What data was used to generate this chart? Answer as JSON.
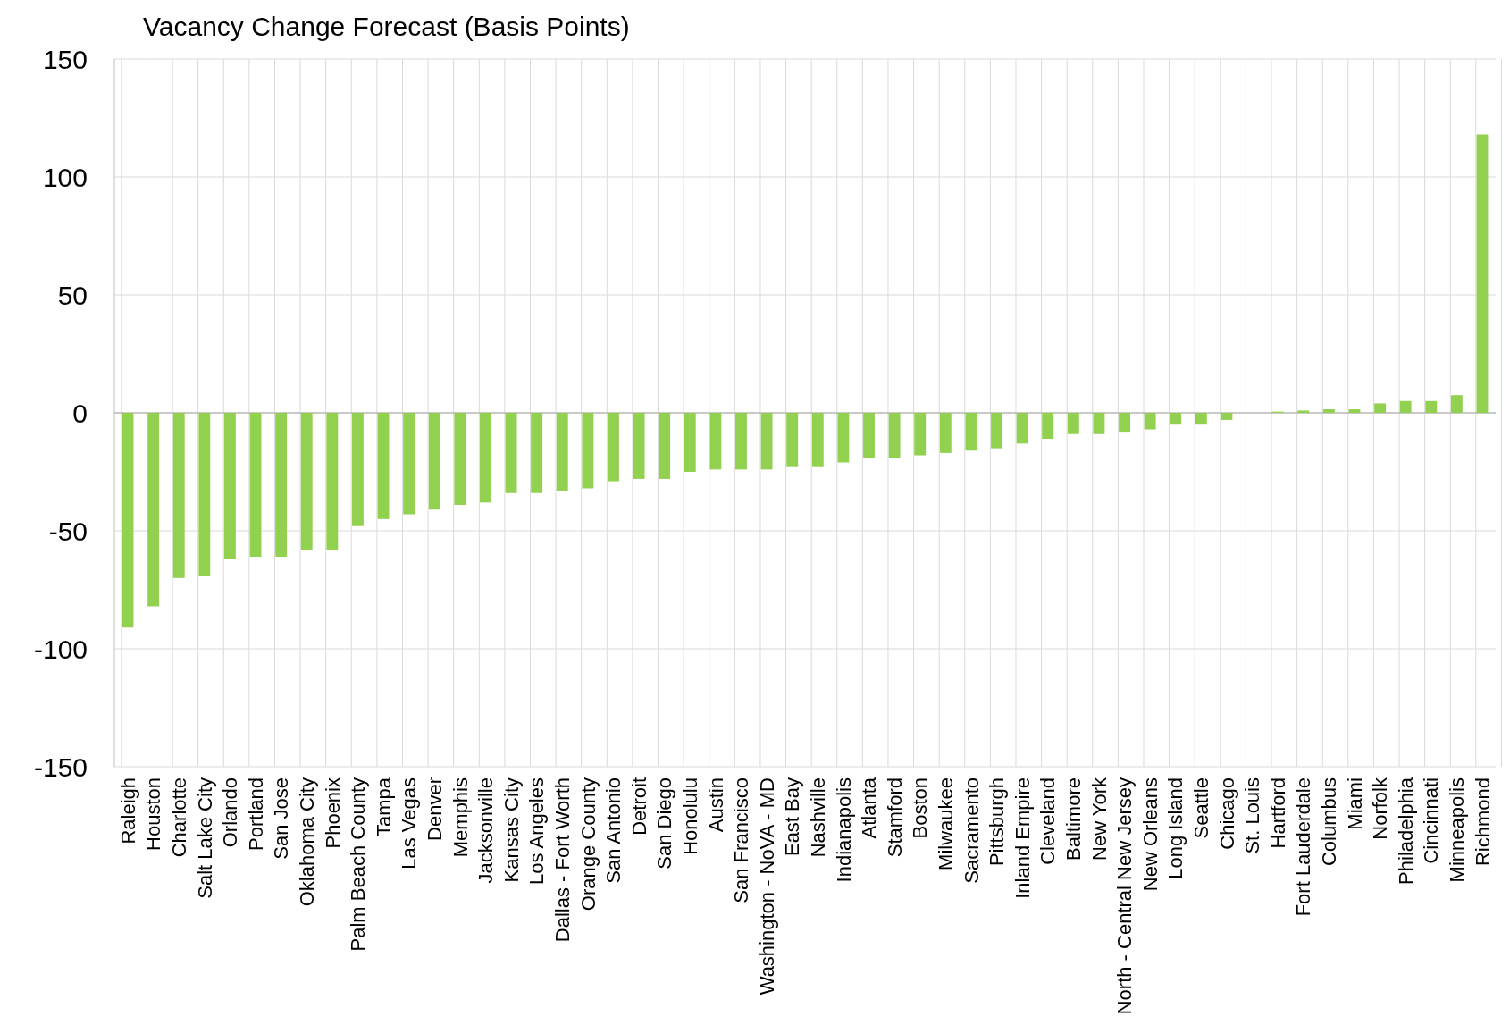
{
  "chart_data": {
    "type": "bar",
    "title": "Vacancy Change Forecast (Basis Points)",
    "categories": [
      "Raleigh",
      "Houston",
      "Charlotte",
      "Salt Lake City",
      "Orlando",
      "Portland",
      "San Jose",
      "Oklahoma City",
      "Phoenix",
      "Palm Beach County",
      "Tampa",
      "Las Vegas",
      "Denver",
      "Memphis",
      "Jacksonville",
      "Kansas City",
      "Los Angeles",
      "Dallas - Fort Worth",
      "Orange County",
      "San Antonio",
      "Detroit",
      "San Diego",
      "Honolulu",
      "Austin",
      "San Francisco",
      "Washington - NoVA - MD",
      "East Bay",
      "Nashville",
      "Indianapolis",
      "Atlanta",
      "Stamford",
      "Boston",
      "Milwaukee",
      "Sacramento",
      "Pittsburgh",
      "Inland Empire",
      "Cleveland",
      "Baltimore",
      "New York",
      "North - Central New Jersey",
      "New Orleans",
      "Long Island",
      "Seattle",
      "Chicago",
      "St. Louis",
      "Hartford",
      "Fort Lauderdale",
      "Columbus",
      "Miami",
      "Norfolk",
      "Philadelphia",
      "Cincinnati",
      "Minneapolis",
      "Richmond"
    ],
    "values": [
      -91,
      -82,
      -70,
      -69,
      -62,
      -61,
      -61,
      -58,
      -58,
      -48,
      -45,
      -43,
      -41,
      -39,
      -38,
      -34,
      -34,
      -33,
      -32,
      -29,
      -28,
      -28,
      -25,
      -24,
      -24,
      -24,
      -23,
      -23,
      -21,
      -19,
      -19,
      -18,
      -17,
      -16,
      -15,
      -13,
      -11,
      -9,
      -9,
      -8,
      -7,
      -5,
      -5,
      -3,
      0,
      0.5,
      1,
      1.5,
      1.5,
      4,
      5,
      5,
      7.5,
      118
    ],
    "color": "#92d050",
    "ylim": [
      -150,
      150
    ],
    "yticks": [
      -150,
      -100,
      -50,
      0,
      50,
      100,
      150
    ],
    "grid": true
  }
}
